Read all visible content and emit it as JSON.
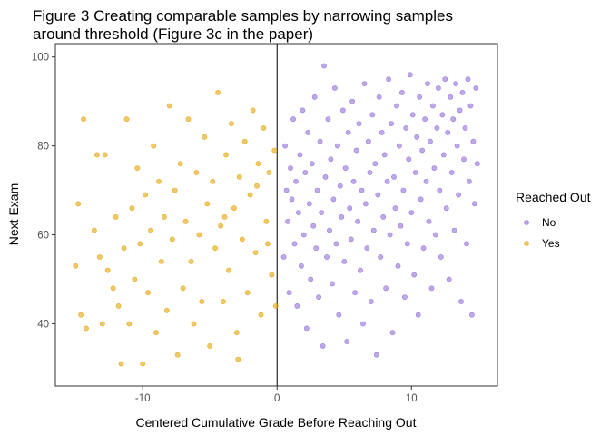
{
  "chart_data": {
    "type": "scatter",
    "title_lines": [
      "Figure 3 Creating comparable samples by narrowing samples",
      " around threshold (Figure 3c in the paper)"
    ],
    "xlabel": "Centered Cumulative Grade Before Reaching Out",
    "ylabel": "Next Exam",
    "xlim": [
      -16.5,
      16.4
    ],
    "ylim": [
      26,
      103
    ],
    "xticks": [
      -10,
      0,
      10
    ],
    "yticks": [
      40,
      60,
      80,
      100
    ],
    "grid": false,
    "threshold_line_x": 0,
    "legend": {
      "title": "Reached Out",
      "placement": "right",
      "entries": [
        {
          "label": "No",
          "color": "#9370DB"
        },
        {
          "label": "Yes",
          "color": "#E5A50A"
        }
      ]
    },
    "series": [
      {
        "name": "No",
        "color": "#9370DB",
        "points": [
          [
            0.5,
            55
          ],
          [
            0.6,
            80
          ],
          [
            0.7,
            70
          ],
          [
            0.8,
            63
          ],
          [
            0.9,
            47
          ],
          [
            1.0,
            75
          ],
          [
            1.1,
            68
          ],
          [
            1.2,
            86
          ],
          [
            1.3,
            58
          ],
          [
            1.4,
            72
          ],
          [
            1.5,
            44
          ],
          [
            1.6,
            65
          ],
          [
            1.7,
            78
          ],
          [
            1.8,
            53
          ],
          [
            1.9,
            88
          ],
          [
            2.0,
            60
          ],
          [
            2.1,
            74
          ],
          [
            2.2,
            39
          ],
          [
            2.3,
            83
          ],
          [
            2.4,
            67
          ],
          [
            2.5,
            50
          ],
          [
            2.6,
            76
          ],
          [
            2.7,
            62
          ],
          [
            2.8,
            91
          ],
          [
            2.9,
            57
          ],
          [
            3.0,
            70
          ],
          [
            3.1,
            46
          ],
          [
            3.2,
            81
          ],
          [
            3.3,
            65
          ],
          [
            3.4,
            35
          ],
          [
            3.5,
            98
          ],
          [
            3.6,
            73
          ],
          [
            3.7,
            55
          ],
          [
            3.8,
            86
          ],
          [
            3.9,
            61
          ],
          [
            4.0,
            77
          ],
          [
            4.1,
            49
          ],
          [
            4.2,
            68
          ],
          [
            4.3,
            93
          ],
          [
            4.4,
            58
          ],
          [
            4.5,
            80
          ],
          [
            4.6,
            42
          ],
          [
            4.7,
            71
          ],
          [
            4.8,
            64
          ],
          [
            4.9,
            88
          ],
          [
            5.0,
            54
          ],
          [
            5.1,
            75
          ],
          [
            5.2,
            36
          ],
          [
            5.3,
            83
          ],
          [
            5.4,
            66
          ],
          [
            5.5,
            59
          ],
          [
            5.6,
            90
          ],
          [
            5.7,
            72
          ],
          [
            5.8,
            47
          ],
          [
            5.9,
            79
          ],
          [
            6.0,
            63
          ],
          [
            6.1,
            85
          ],
          [
            6.2,
            52
          ],
          [
            6.3,
            70
          ],
          [
            6.4,
            40
          ],
          [
            6.5,
            94
          ],
          [
            6.6,
            67
          ],
          [
            6.7,
            57
          ],
          [
            6.8,
            81
          ],
          [
            6.9,
            74
          ],
          [
            7.0,
            45
          ],
          [
            7.1,
            87
          ],
          [
            7.2,
            61
          ],
          [
            7.3,
            76
          ],
          [
            7.4,
            33
          ],
          [
            7.5,
            69
          ],
          [
            7.6,
            91
          ],
          [
            7.7,
            55
          ],
          [
            7.8,
            83
          ],
          [
            7.9,
            64
          ],
          [
            8.0,
            78
          ],
          [
            8.1,
            48
          ],
          [
            8.2,
            72
          ],
          [
            8.3,
            95
          ],
          [
            8.4,
            60
          ],
          [
            8.5,
            85
          ],
          [
            8.6,
            38
          ],
          [
            8.7,
            73
          ],
          [
            8.8,
            66
          ],
          [
            8.9,
            89
          ],
          [
            9.0,
            53
          ],
          [
            9.1,
            80
          ],
          [
            9.2,
            62
          ],
          [
            9.3,
            92
          ],
          [
            9.4,
            70
          ],
          [
            9.5,
            46
          ],
          [
            9.6,
            84
          ],
          [
            9.7,
            58
          ],
          [
            9.8,
            77
          ],
          [
            9.9,
            96
          ],
          [
            10.0,
            65
          ],
          [
            10.1,
            87
          ],
          [
            10.2,
            51
          ],
          [
            10.3,
            74
          ],
          [
            10.4,
            82
          ],
          [
            10.5,
            42
          ],
          [
            10.6,
            91
          ],
          [
            10.7,
            68
          ],
          [
            10.8,
            79
          ],
          [
            10.9,
            57
          ],
          [
            11.0,
            86
          ],
          [
            11.1,
            72
          ],
          [
            11.2,
            94
          ],
          [
            11.3,
            63
          ],
          [
            11.4,
            81
          ],
          [
            11.5,
            48
          ],
          [
            11.6,
            89
          ],
          [
            11.7,
            75
          ],
          [
            11.8,
            60
          ],
          [
            11.9,
            84
          ],
          [
            12.0,
            93
          ],
          [
            12.1,
            70
          ],
          [
            12.2,
            55
          ],
          [
            12.3,
            87
          ],
          [
            12.4,
            78
          ],
          [
            12.5,
            95
          ],
          [
            12.6,
            66
          ],
          [
            12.7,
            83
          ],
          [
            12.8,
            50
          ],
          [
            12.9,
            91
          ],
          [
            13.0,
            74
          ],
          [
            13.1,
            86
          ],
          [
            13.2,
            61
          ],
          [
            13.3,
            94
          ],
          [
            13.4,
            80
          ],
          [
            13.5,
            69
          ],
          [
            13.6,
            88
          ],
          [
            13.7,
            45
          ],
          [
            13.8,
            92
          ],
          [
            13.9,
            77
          ],
          [
            14.0,
            84
          ],
          [
            14.1,
            58
          ],
          [
            14.2,
            95
          ],
          [
            14.3,
            72
          ],
          [
            14.4,
            89
          ],
          [
            14.5,
            42
          ],
          [
            14.6,
            81
          ],
          [
            14.7,
            67
          ],
          [
            14.8,
            93
          ],
          [
            14.9,
            76
          ]
        ]
      },
      {
        "name": "Yes",
        "color": "#E5A50A",
        "points": [
          [
            -15.0,
            53
          ],
          [
            -14.8,
            67
          ],
          [
            -14.6,
            42
          ],
          [
            -14.4,
            86
          ],
          [
            -14.2,
            39
          ],
          [
            -13.6,
            61
          ],
          [
            -13.4,
            78
          ],
          [
            -13.2,
            55
          ],
          [
            -13.0,
            40
          ],
          [
            -12.8,
            78
          ],
          [
            -12.6,
            52
          ],
          [
            -12.2,
            48
          ],
          [
            -12.0,
            64
          ],
          [
            -11.8,
            44
          ],
          [
            -11.6,
            31
          ],
          [
            -11.4,
            57
          ],
          [
            -11.2,
            86
          ],
          [
            -11.0,
            40
          ],
          [
            -10.8,
            66
          ],
          [
            -10.6,
            50
          ],
          [
            -10.4,
            75
          ],
          [
            -10.2,
            58
          ],
          [
            -10.0,
            31
          ],
          [
            -9.8,
            69
          ],
          [
            -9.6,
            47
          ],
          [
            -9.4,
            61
          ],
          [
            -9.2,
            80
          ],
          [
            -9.0,
            38
          ],
          [
            -8.8,
            72
          ],
          [
            -8.6,
            54
          ],
          [
            -8.4,
            64
          ],
          [
            -8.2,
            43
          ],
          [
            -8.0,
            89
          ],
          [
            -7.8,
            59
          ],
          [
            -7.6,
            70
          ],
          [
            -7.4,
            33
          ],
          [
            -7.2,
            76
          ],
          [
            -7.0,
            48
          ],
          [
            -6.8,
            63
          ],
          [
            -6.6,
            86
          ],
          [
            -6.4,
            54
          ],
          [
            -6.2,
            40
          ],
          [
            -6.0,
            74
          ],
          [
            -5.8,
            60
          ],
          [
            -5.6,
            45
          ],
          [
            -5.4,
            82
          ],
          [
            -5.2,
            67
          ],
          [
            -5.0,
            35
          ],
          [
            -4.8,
            72
          ],
          [
            -4.6,
            57
          ],
          [
            -4.4,
            92
          ],
          [
            -4.2,
            62
          ],
          [
            -4.0,
            45
          ],
          [
            -3.8,
            78
          ],
          [
            -3.6,
            52
          ],
          [
            -3.4,
            85
          ],
          [
            -3.2,
            66
          ],
          [
            -3.0,
            38
          ],
          [
            -2.8,
            73
          ],
          [
            -2.6,
            59
          ],
          [
            -2.4,
            81
          ],
          [
            -2.2,
            47
          ],
          [
            -2.0,
            69
          ],
          [
            -1.8,
            88
          ],
          [
            -1.6,
            56
          ],
          [
            -1.4,
            76
          ],
          [
            -1.2,
            42
          ],
          [
            -1.0,
            84
          ],
          [
            -0.8,
            63
          ],
          [
            -0.6,
            74
          ],
          [
            -0.4,
            51
          ],
          [
            -0.2,
            79
          ],
          [
            -0.1,
            44
          ],
          [
            -2.9,
            32
          ],
          [
            -1.5,
            71
          ],
          [
            -0.7,
            58
          ],
          [
            -3.9,
            64
          ]
        ]
      }
    ]
  }
}
